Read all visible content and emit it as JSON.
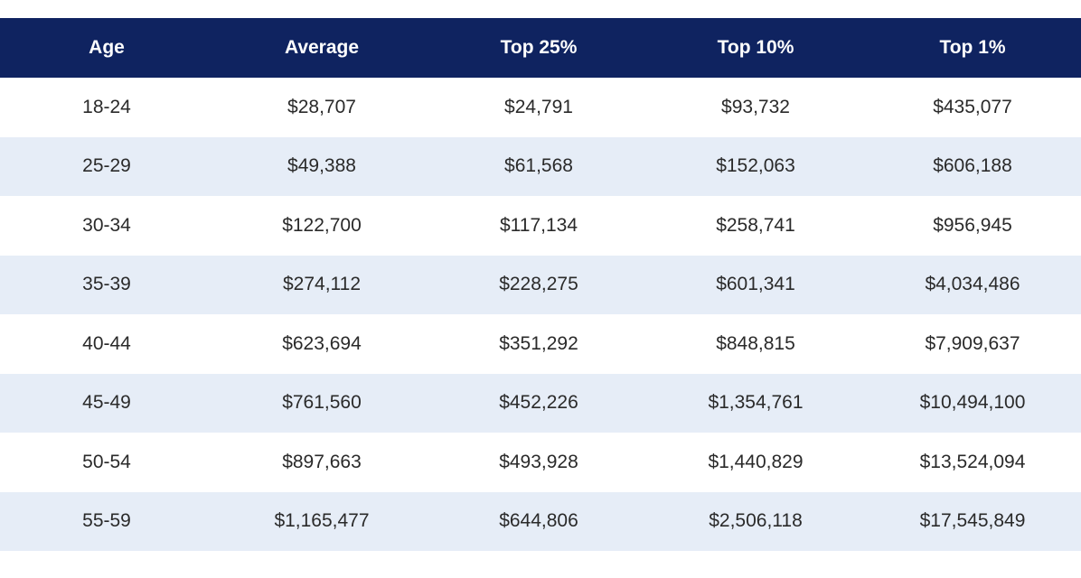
{
  "table": {
    "headers": [
      "Age",
      "Average",
      "Top 25%",
      "Top 10%",
      "Top 1%"
    ],
    "rows": [
      [
        "18-24",
        "$28,707",
        "$24,791",
        "$93,732",
        "$435,077"
      ],
      [
        "25-29",
        "$49,388",
        "$61,568",
        "$152,063",
        "$606,188"
      ],
      [
        "30-34",
        "$122,700",
        "$117,134",
        "$258,741",
        "$956,945"
      ],
      [
        "35-39",
        "$274,112",
        "$228,275",
        "$601,341",
        "$4,034,486"
      ],
      [
        "40-44",
        "$623,694",
        "$351,292",
        "$848,815",
        "$7,909,637"
      ],
      [
        "45-49",
        "$761,560",
        "$452,226",
        "$1,354,761",
        "$10,494,100"
      ],
      [
        "50-54",
        "$897,663",
        "$493,928",
        "$1,440,829",
        "$13,524,094"
      ],
      [
        "55-59",
        "$1,165,477",
        "$644,806",
        "$2,506,118",
        "$17,545,849"
      ]
    ]
  },
  "colors": {
    "header_bg": "#0f2360",
    "header_text": "#ffffff",
    "stripe": "#e6edf7",
    "cell_text": "#2a2a2a"
  }
}
